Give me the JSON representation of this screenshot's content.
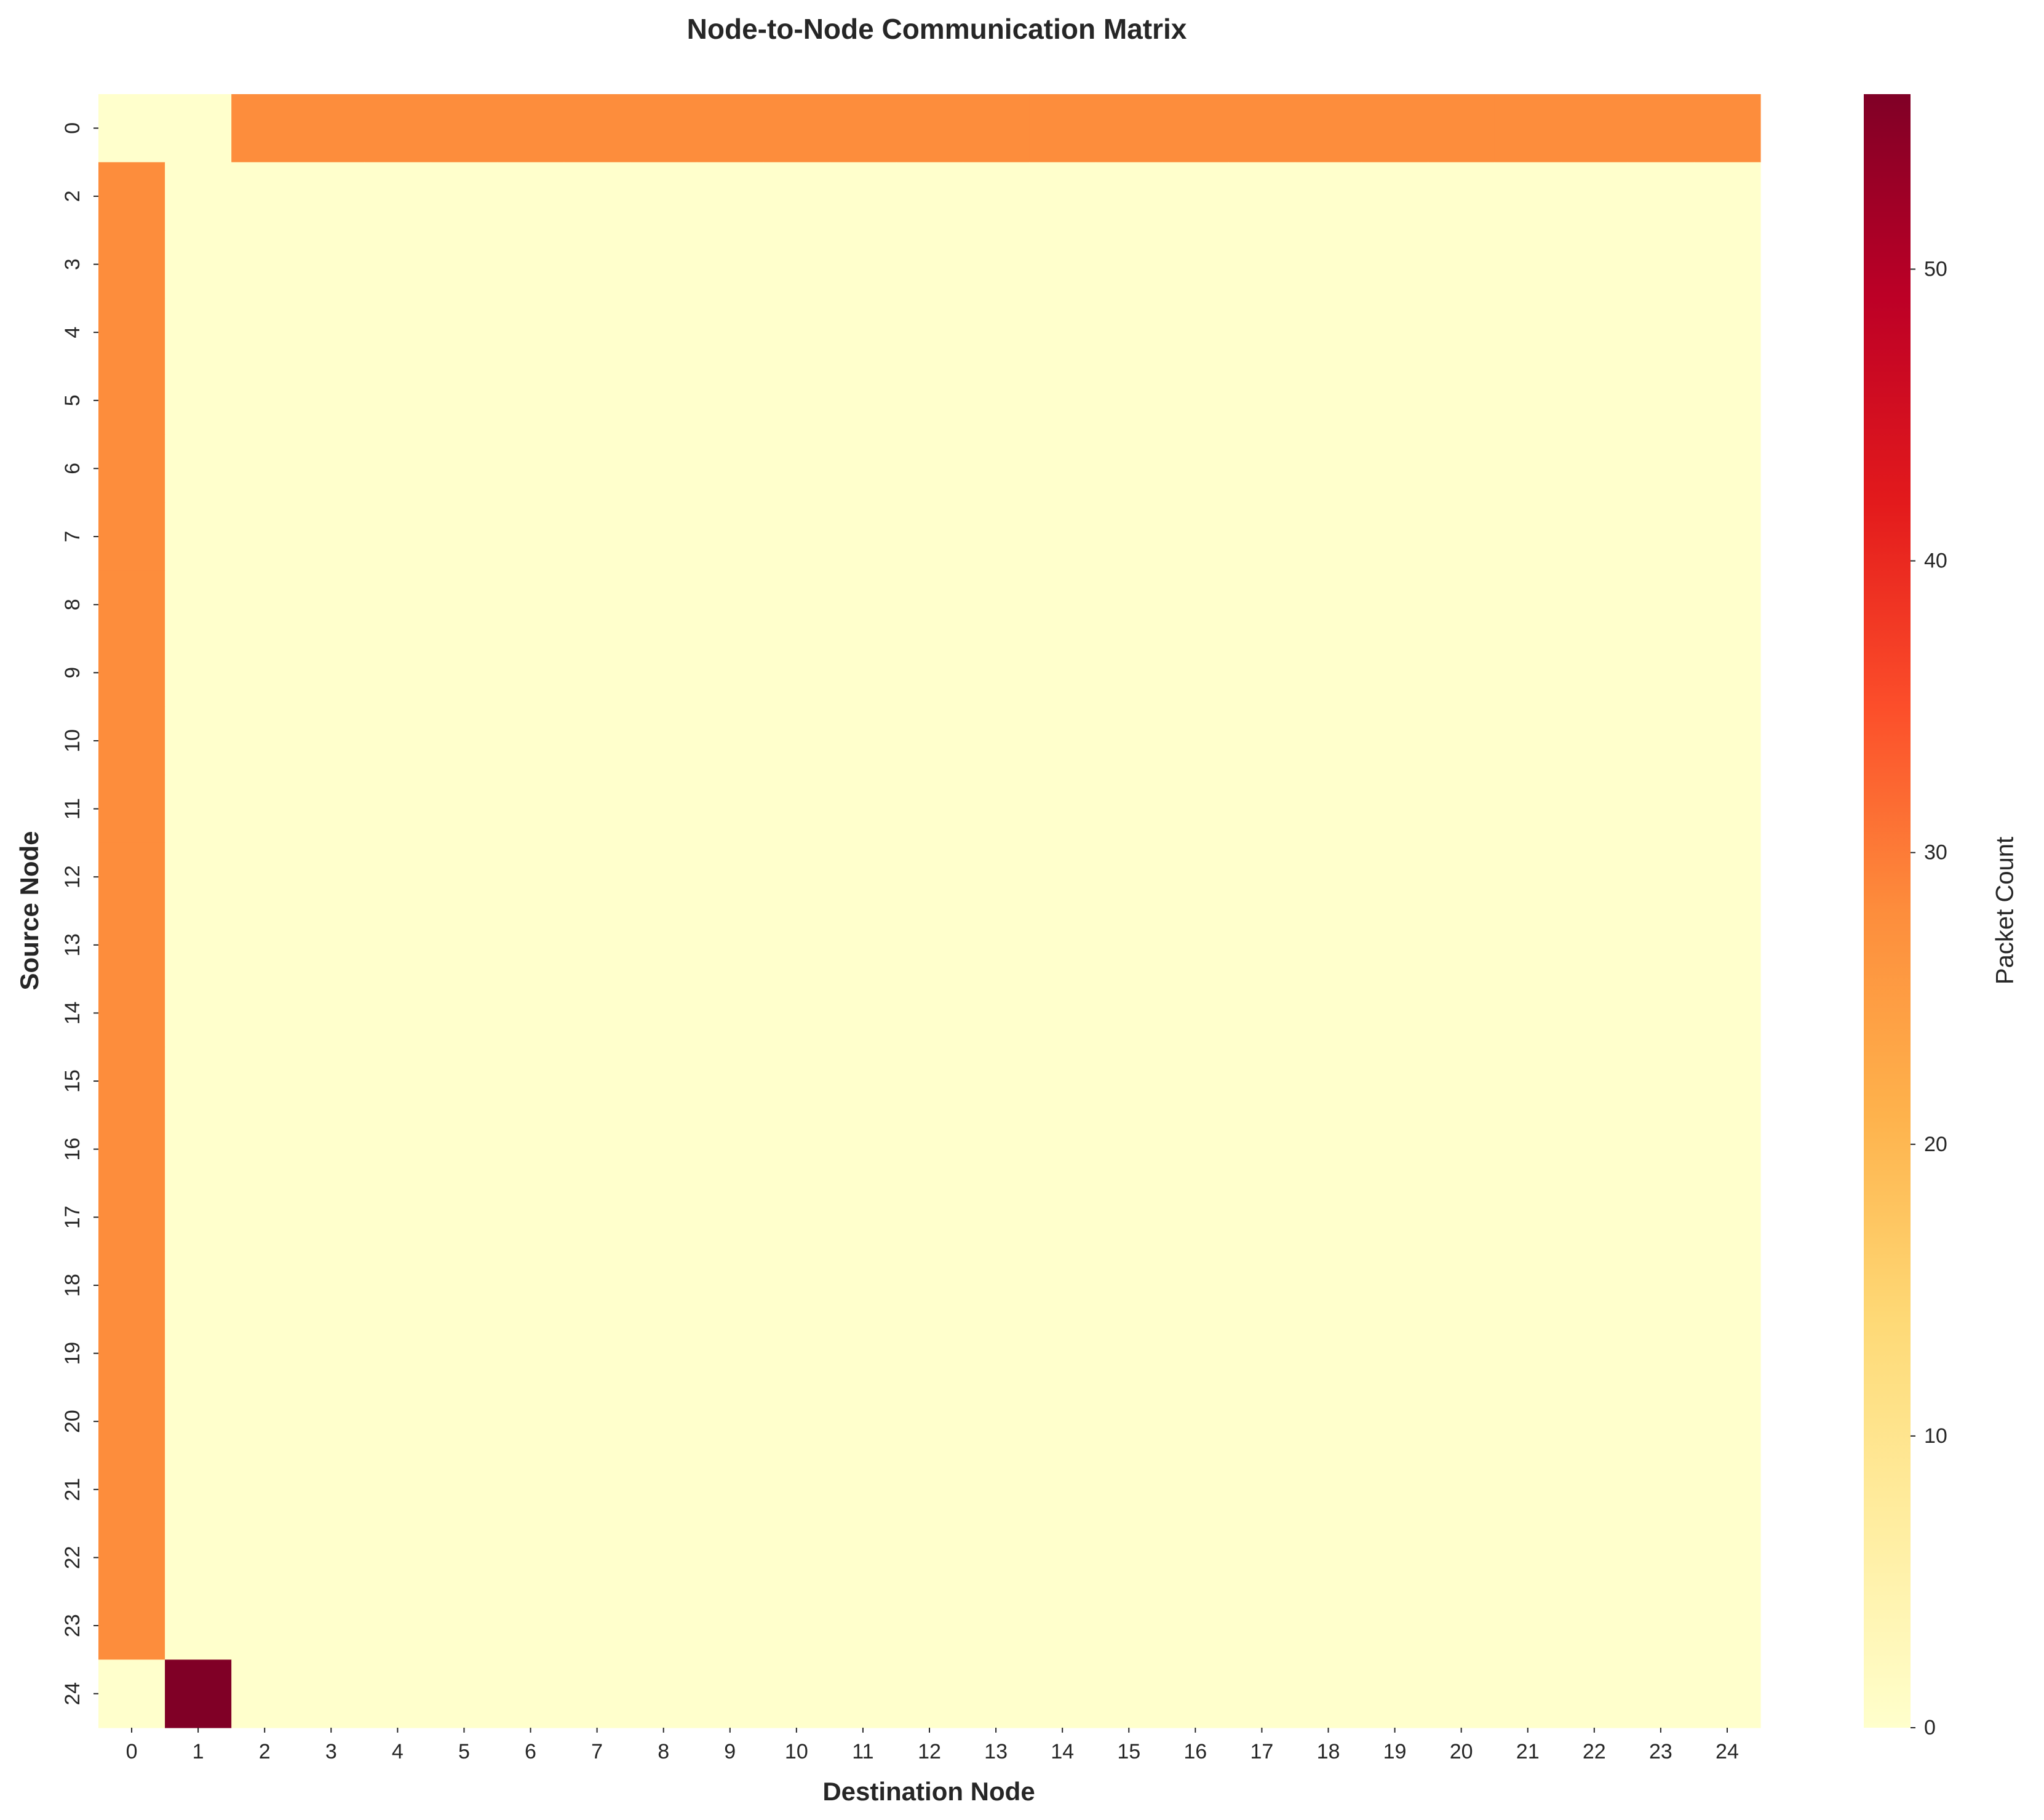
{
  "chart_data": {
    "type": "heatmap",
    "title": "Node-to-Node Communication Matrix",
    "xlabel": "Destination Node",
    "ylabel": "Source Node",
    "colorbar_label": "Packet Count",
    "colormap": "YlOrRd",
    "vmin": 0,
    "vmax": 56,
    "colorbar_ticks": [
      0,
      10,
      20,
      30,
      40,
      50
    ],
    "x_categories": [
      "0",
      "1",
      "2",
      "3",
      "4",
      "5",
      "6",
      "7",
      "8",
      "9",
      "10",
      "11",
      "12",
      "13",
      "14",
      "15",
      "16",
      "17",
      "18",
      "19",
      "20",
      "21",
      "22",
      "23",
      "24"
    ],
    "y_categories": [
      "0",
      "2",
      "3",
      "4",
      "5",
      "6",
      "7",
      "8",
      "9",
      "10",
      "11",
      "12",
      "13",
      "14",
      "15",
      "16",
      "17",
      "18",
      "19",
      "20",
      "21",
      "22",
      "23",
      "24"
    ],
    "values": [
      [
        0,
        0,
        28,
        28,
        28,
        28,
        28,
        28,
        28,
        28,
        28,
        28,
        28,
        28,
        28,
        28,
        28,
        28,
        28,
        28,
        28,
        28,
        28,
        28,
        28
      ],
      [
        28,
        0,
        0,
        0,
        0,
        0,
        0,
        0,
        0,
        0,
        0,
        0,
        0,
        0,
        0,
        0,
        0,
        0,
        0,
        0,
        0,
        0,
        0,
        0,
        0
      ],
      [
        28,
        0,
        0,
        0,
        0,
        0,
        0,
        0,
        0,
        0,
        0,
        0,
        0,
        0,
        0,
        0,
        0,
        0,
        0,
        0,
        0,
        0,
        0,
        0,
        0
      ],
      [
        28,
        0,
        0,
        0,
        0,
        0,
        0,
        0,
        0,
        0,
        0,
        0,
        0,
        0,
        0,
        0,
        0,
        0,
        0,
        0,
        0,
        0,
        0,
        0,
        0
      ],
      [
        28,
        0,
        0,
        0,
        0,
        0,
        0,
        0,
        0,
        0,
        0,
        0,
        0,
        0,
        0,
        0,
        0,
        0,
        0,
        0,
        0,
        0,
        0,
        0,
        0
      ],
      [
        28,
        0,
        0,
        0,
        0,
        0,
        0,
        0,
        0,
        0,
        0,
        0,
        0,
        0,
        0,
        0,
        0,
        0,
        0,
        0,
        0,
        0,
        0,
        0,
        0
      ],
      [
        28,
        0,
        0,
        0,
        0,
        0,
        0,
        0,
        0,
        0,
        0,
        0,
        0,
        0,
        0,
        0,
        0,
        0,
        0,
        0,
        0,
        0,
        0,
        0,
        0
      ],
      [
        28,
        0,
        0,
        0,
        0,
        0,
        0,
        0,
        0,
        0,
        0,
        0,
        0,
        0,
        0,
        0,
        0,
        0,
        0,
        0,
        0,
        0,
        0,
        0,
        0
      ],
      [
        28,
        0,
        0,
        0,
        0,
        0,
        0,
        0,
        0,
        0,
        0,
        0,
        0,
        0,
        0,
        0,
        0,
        0,
        0,
        0,
        0,
        0,
        0,
        0,
        0
      ],
      [
        28,
        0,
        0,
        0,
        0,
        0,
        0,
        0,
        0,
        0,
        0,
        0,
        0,
        0,
        0,
        0,
        0,
        0,
        0,
        0,
        0,
        0,
        0,
        0,
        0
      ],
      [
        28,
        0,
        0,
        0,
        0,
        0,
        0,
        0,
        0,
        0,
        0,
        0,
        0,
        0,
        0,
        0,
        0,
        0,
        0,
        0,
        0,
        0,
        0,
        0,
        0
      ],
      [
        28,
        0,
        0,
        0,
        0,
        0,
        0,
        0,
        0,
        0,
        0,
        0,
        0,
        0,
        0,
        0,
        0,
        0,
        0,
        0,
        0,
        0,
        0,
        0,
        0
      ],
      [
        28,
        0,
        0,
        0,
        0,
        0,
        0,
        0,
        0,
        0,
        0,
        0,
        0,
        0,
        0,
        0,
        0,
        0,
        0,
        0,
        0,
        0,
        0,
        0,
        0
      ],
      [
        28,
        0,
        0,
        0,
        0,
        0,
        0,
        0,
        0,
        0,
        0,
        0,
        0,
        0,
        0,
        0,
        0,
        0,
        0,
        0,
        0,
        0,
        0,
        0,
        0
      ],
      [
        28,
        0,
        0,
        0,
        0,
        0,
        0,
        0,
        0,
        0,
        0,
        0,
        0,
        0,
        0,
        0,
        0,
        0,
        0,
        0,
        0,
        0,
        0,
        0,
        0
      ],
      [
        28,
        0,
        0,
        0,
        0,
        0,
        0,
        0,
        0,
        0,
        0,
        0,
        0,
        0,
        0,
        0,
        0,
        0,
        0,
        0,
        0,
        0,
        0,
        0,
        0
      ],
      [
        28,
        0,
        0,
        0,
        0,
        0,
        0,
        0,
        0,
        0,
        0,
        0,
        0,
        0,
        0,
        0,
        0,
        0,
        0,
        0,
        0,
        0,
        0,
        0,
        0
      ],
      [
        28,
        0,
        0,
        0,
        0,
        0,
        0,
        0,
        0,
        0,
        0,
        0,
        0,
        0,
        0,
        0,
        0,
        0,
        0,
        0,
        0,
        0,
        0,
        0,
        0
      ],
      [
        28,
        0,
        0,
        0,
        0,
        0,
        0,
        0,
        0,
        0,
        0,
        0,
        0,
        0,
        0,
        0,
        0,
        0,
        0,
        0,
        0,
        0,
        0,
        0,
        0
      ],
      [
        28,
        0,
        0,
        0,
        0,
        0,
        0,
        0,
        0,
        0,
        0,
        0,
        0,
        0,
        0,
        0,
        0,
        0,
        0,
        0,
        0,
        0,
        0,
        0,
        0
      ],
      [
        28,
        0,
        0,
        0,
        0,
        0,
        0,
        0,
        0,
        0,
        0,
        0,
        0,
        0,
        0,
        0,
        0,
        0,
        0,
        0,
        0,
        0,
        0,
        0,
        0
      ],
      [
        28,
        0,
        0,
        0,
        0,
        0,
        0,
        0,
        0,
        0,
        0,
        0,
        0,
        0,
        0,
        0,
        0,
        0,
        0,
        0,
        0,
        0,
        0,
        0,
        0
      ],
      [
        28,
        0,
        0,
        0,
        0,
        0,
        0,
        0,
        0,
        0,
        0,
        0,
        0,
        0,
        0,
        0,
        0,
        0,
        0,
        0,
        0,
        0,
        0,
        0,
        0
      ],
      [
        0,
        56,
        0,
        0,
        0,
        0,
        0,
        0,
        0,
        0,
        0,
        0,
        0,
        0,
        0,
        0,
        0,
        0,
        0,
        0,
        0,
        0,
        0,
        0,
        0
      ]
    ],
    "grid": false,
    "legend": "colorbar-right"
  }
}
